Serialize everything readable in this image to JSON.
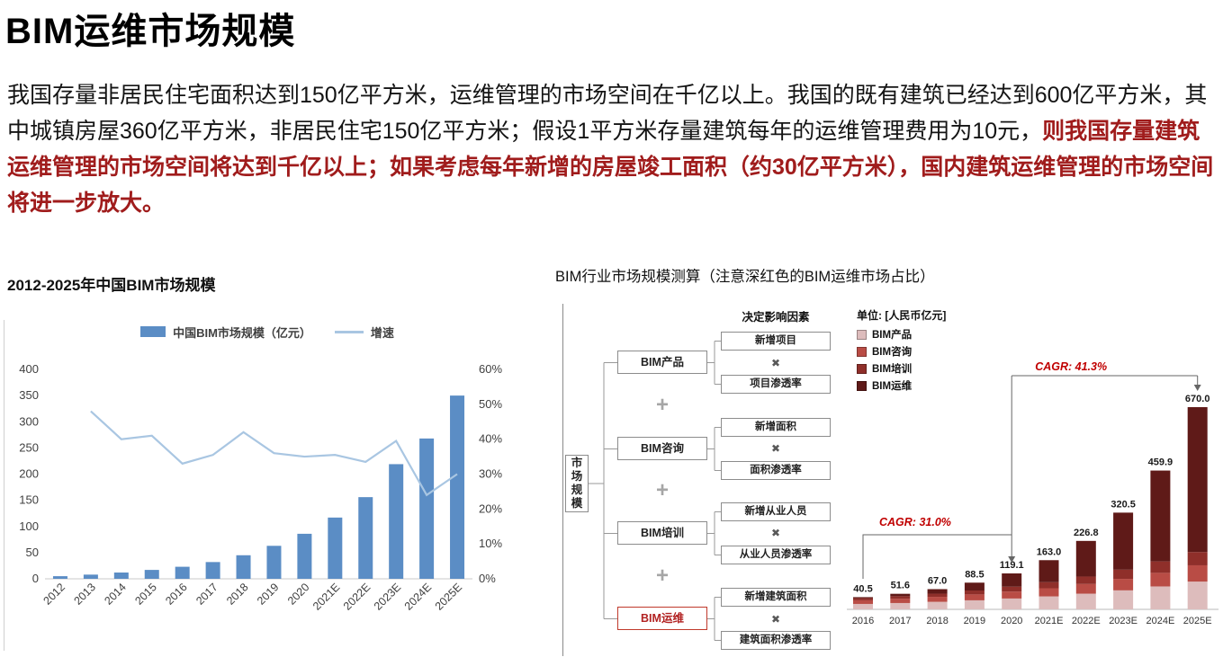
{
  "page": {
    "title": "BIM运维市场规模",
    "paragraph_black": "我国存量非居民住宅面积达到150亿平方米，运维管理的市场空间在千亿以上。我国的既有建筑已经达到600亿平方米，其中城镇房屋360亿平方米，非居民住宅150亿平方米；假设1平方米存量建筑每年的运维管理费用为10元，",
    "paragraph_red": "则我国存量建筑运维管理的市场空间将达到千亿以上；如果考虑每年新增的房屋竣工面积（约30亿平方米），国内建筑运维管理的市场空间将进一步放大。"
  },
  "left_section": {
    "title": "2012-2025年中国BIM市场规模"
  },
  "right_section": {
    "title": "BIM行业市场规模测算（注意深红色的BIM运维市场占比）"
  },
  "diagram": {
    "header": "决定影响因素",
    "root": "市场规模",
    "plus": "+",
    "times": "✖",
    "rows": [
      {
        "category": "BIM产品",
        "factor_top": "新增项目",
        "factor_bottom": "项目渗透率",
        "highlight": false
      },
      {
        "category": "BIM咨询",
        "factor_top": "新增面积",
        "factor_bottom": "面积渗透率",
        "highlight": false
      },
      {
        "category": "BIM培训",
        "factor_top": "新增从业人员",
        "factor_bottom": "从业人员渗透率",
        "highlight": false
      },
      {
        "category": "BIM运维",
        "factor_top": "新增建筑面积",
        "factor_bottom": "建筑面积渗透率",
        "highlight": true
      }
    ]
  },
  "chart_data": [
    {
      "type": "bar",
      "subtype": "bar+line-combo",
      "title": "2012-2025年中国BIM市场规模",
      "categories": [
        "2012",
        "2013",
        "2014",
        "2015",
        "2016",
        "2017",
        "2018",
        "2019",
        "2020",
        "2021E",
        "2022E",
        "2023E",
        "2024E",
        "2025E"
      ],
      "series": [
        {
          "name": "中国BIM市场规模（亿元）",
          "type": "bar",
          "axis": "left",
          "color": "#5b8dc5",
          "values": [
            5,
            8,
            12,
            17,
            23,
            32,
            45,
            63,
            86,
            117,
            156,
            219,
            268,
            350
          ]
        },
        {
          "name": "增速",
          "type": "line",
          "axis": "right",
          "color": "#a9c6e2",
          "values": [
            null,
            48,
            40,
            41,
            33,
            35.5,
            42,
            36,
            35,
            35.5,
            33.5,
            39.5,
            24,
            30
          ]
        }
      ],
      "left_axis": {
        "min": 0,
        "max": 400,
        "ticks": [
          "400",
          "350",
          "300",
          "250",
          "200",
          "150",
          "100",
          "50",
          "0"
        ]
      },
      "right_axis": {
        "min": 0,
        "max": 60,
        "ticks": [
          "60%",
          "50%",
          "40%",
          "30%",
          "20%",
          "10%",
          "0%"
        ]
      },
      "grid": false,
      "legend_position": "top"
    },
    {
      "type": "bar",
      "subtype": "stacked",
      "title": "BIM行业市场规模测算",
      "unit": "单位: [人民币亿元]",
      "categories": [
        "2016",
        "2017",
        "2018",
        "2019",
        "2020",
        "2021E",
        "2022E",
        "2023E",
        "2024E",
        "2025E"
      ],
      "series": [
        {
          "name": "BIM产品",
          "color": "#ddbcbc",
          "values": [
            18.0,
            21.0,
            25.0,
            30.0,
            36.0,
            43.0,
            52.0,
            63.0,
            76.0,
            92.0
          ]
        },
        {
          "name": "BIM咨询",
          "color": "#b94c45",
          "values": [
            12.0,
            14.0,
            16.5,
            19.5,
            23.0,
            27.0,
            32.0,
            38.0,
            45.0,
            54.0
          ]
        },
        {
          "name": "BIM培训",
          "color": "#8f2f2a",
          "values": [
            7.0,
            8.6,
            10.5,
            13.0,
            16.1,
            20.0,
            24.8,
            30.5,
            37.9,
            44.0
          ]
        },
        {
          "name": "BIM运维",
          "color": "#5f1a18",
          "values": [
            3.5,
            8.0,
            15.0,
            26.0,
            44.0,
            73.0,
            118.0,
            189.0,
            301.0,
            480.0
          ]
        }
      ],
      "totals": [
        "40.5",
        "51.6",
        "67.0",
        "88.5",
        "119.1",
        "163.0",
        "226.8",
        "320.5",
        "459.9",
        "670.0"
      ],
      "ylim": [
        0,
        700
      ],
      "grid": false,
      "legend_position": "top-left",
      "annotations": [
        {
          "text": "CAGR: 31.0%",
          "from": "2016",
          "to": "2020",
          "color": "#c00000"
        },
        {
          "text": "CAGR: 41.3%",
          "from": "2020",
          "to": "2025E",
          "color": "#c00000"
        }
      ]
    }
  ]
}
